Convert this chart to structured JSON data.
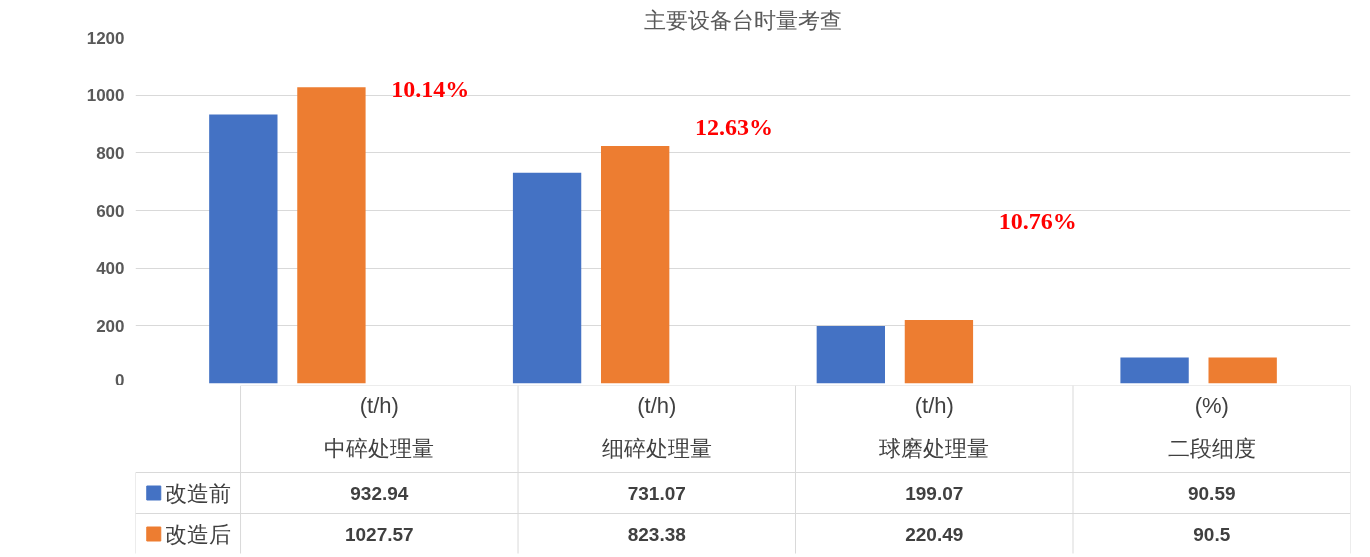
{
  "chart_data": {
    "type": "bar",
    "title": "主要设备台时量考查",
    "categories": [
      "(t/h)\n中碎处理量",
      "(t/h)\n细碎处理量",
      "(t/h)\n球磨处理量",
      "(%)\n二段细度"
    ],
    "series": [
      {
        "name": "改造前",
        "color": "#4472c4",
        "values": [
          932.94,
          731.07,
          199.07,
          90.59
        ]
      },
      {
        "name": "改造后",
        "color": "#ed7d31",
        "values": [
          1027.57,
          823.38,
          220.49,
          90.5
        ]
      }
    ],
    "ylim": [
      0,
      1200
    ],
    "yticks": [
      0,
      200,
      400,
      600,
      800,
      1000,
      1200
    ],
    "grid": "y",
    "legend": "bottom left",
    "data_labels": true,
    "annotations": [
      "10.14%",
      "12.63%",
      "10.76%"
    ]
  }
}
